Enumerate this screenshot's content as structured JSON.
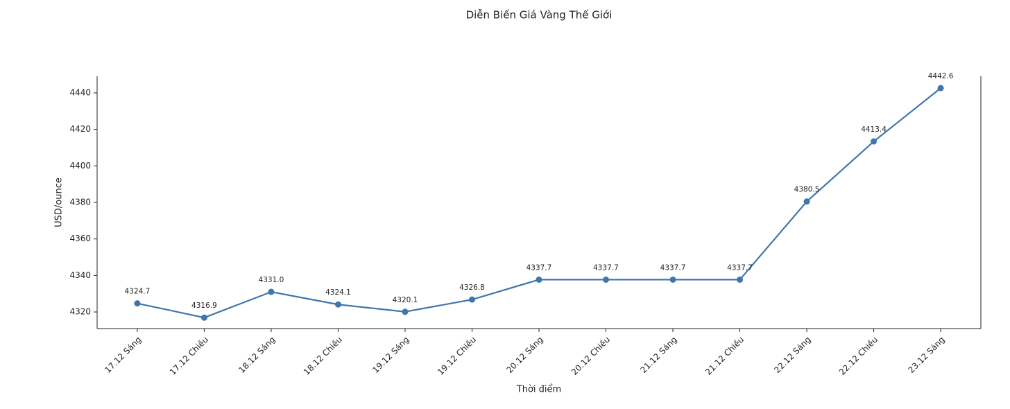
{
  "chart_data": {
    "type": "line",
    "title": "Diễn Biến Giá Vàng Thế Giới",
    "x_label": "Thời điểm",
    "y_label": "USD/ounce",
    "categories": [
      "17.12 Sáng",
      "17.12 Chiều",
      "18.12 Sáng",
      "18.12 Chiều",
      "19.12 Sáng",
      "19.12 Chiều",
      "20.12 Sáng",
      "20.12 Chiều",
      "21.12 Sáng",
      "21.12 Chiều",
      "22.12 Sáng",
      "22.12 Chiều",
      "23.12 Sáng"
    ],
    "values": [
      4324.7,
      4316.9,
      4331.0,
      4324.1,
      4320.1,
      4326.8,
      4337.7,
      4337.7,
      4337.7,
      4337.7,
      4380.5,
      4413.4,
      4442.6
    ],
    "value_labels": [
      "4324.7",
      "4316.9",
      "4331.0",
      "4324.1",
      "4320.1",
      "4326.8",
      "4337.7",
      "4337.7",
      "4337.7",
      "4337.7",
      "4380.5",
      "4413.4",
      "4442.6"
    ],
    "color": "#3f76ab",
    "ylim": [
      4310.9,
      4449.1
    ],
    "yticks": [
      4320,
      4340,
      4360,
      4380,
      4400,
      4420,
      4440
    ],
    "grid": false
  }
}
